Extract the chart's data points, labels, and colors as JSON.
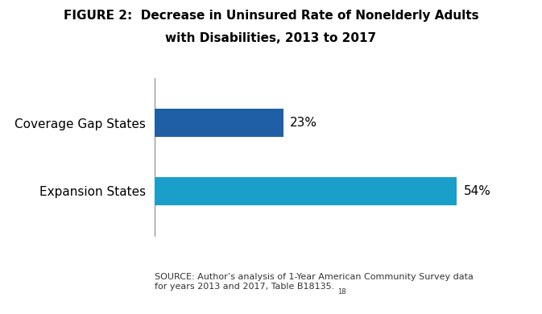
{
  "categories": [
    "Expansion States",
    "Coverage Gap States"
  ],
  "values": [
    54,
    23
  ],
  "bar_colors": [
    "#1a9fca",
    "#1f5fa6"
  ],
  "value_labels": [
    "54%",
    "23%"
  ],
  "max_value": 60,
  "source_text": "SOURCE: Author’s analysis of 1-Year American Community Survey data\nfor years 2013 and 2017, Table B18135.",
  "source_superscript": "18",
  "background_color": "#ffffff",
  "bar_height": 0.42,
  "label_fontsize": 11,
  "value_fontsize": 11,
  "title_fontsize": 11,
  "source_fontsize": 8.0
}
